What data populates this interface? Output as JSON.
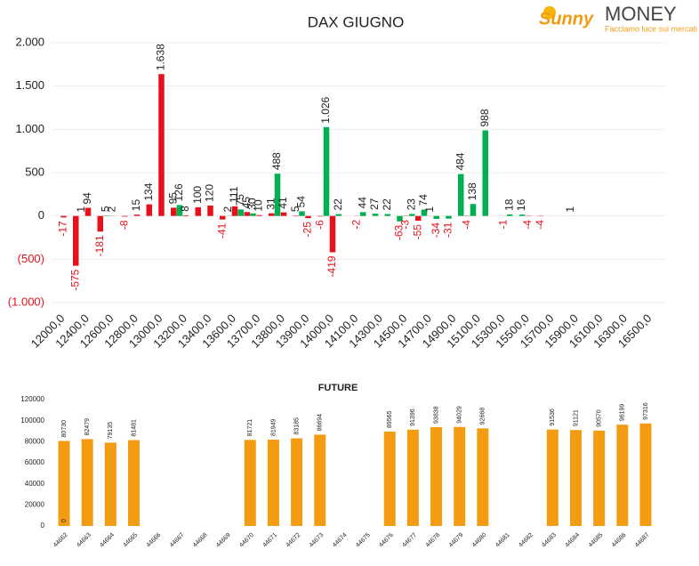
{
  "logo": {
    "brand": "Sunny",
    "name": "MONEY",
    "tagline": "Facciamo luce sui mercati"
  },
  "chart_data": [
    {
      "type": "bar",
      "title": "DAX GIUGNO",
      "categories": [
        "12000,0",
        null,
        "12400,0",
        null,
        "12600,0",
        null,
        "12800,0",
        null,
        "13000,0",
        null,
        "13200,0",
        null,
        "13400,0",
        null,
        "13600,0",
        null,
        "13700,0",
        null,
        "13800,0",
        null,
        "13900,0",
        null,
        "14000,0",
        null,
        "14100,0",
        null,
        "14300,0",
        null,
        "14500,0",
        null,
        "14700,0",
        null,
        "14900,0",
        null,
        "15100,0",
        null,
        "15300,0",
        null,
        "15500,0",
        null,
        "15700,0",
        null,
        "15900,0",
        null,
        "16100,0",
        null,
        "16300,0",
        null,
        "16500,0",
        null
      ],
      "series": [
        {
          "color": "#00b050",
          "values": [
            null,
            null,
            1,
            null,
            5,
            null,
            null,
            null,
            null,
            null,
            126,
            null,
            null,
            null,
            2,
            75,
            30,
            null,
            488,
            null,
            54,
            null,
            1026,
            22,
            null,
            44,
            27,
            22,
            -63,
            23,
            74,
            -34,
            -31,
            484,
            138,
            988,
            null,
            18,
            16,
            null,
            null,
            null,
            1,
            null,
            null,
            null,
            null,
            null,
            null,
            null
          ],
          "value_labels": [
            null,
            null,
            "1",
            null,
            "5",
            null,
            null,
            null,
            null,
            null,
            "126",
            null,
            null,
            null,
            "2",
            "75",
            "30",
            null,
            "488",
            null,
            "54",
            null,
            "1.026",
            "22",
            null,
            "44",
            "27",
            "22",
            "-63",
            "23",
            "74",
            "-34",
            "-31",
            "484",
            "138",
            "988",
            null,
            "18",
            "16",
            null,
            null,
            null,
            "1",
            null,
            null,
            null,
            null,
            null,
            null,
            null
          ]
        },
        {
          "color": "#e8101b",
          "values": [
            -17,
            -575,
            94,
            -181,
            2,
            -8,
            15,
            134,
            1638,
            95,
            8,
            100,
            120,
            -41,
            111,
            45,
            10,
            31,
            41,
            5,
            -25,
            -6,
            -419,
            null,
            -2,
            null,
            null,
            null,
            -3,
            -55,
            1,
            null,
            null,
            -4,
            null,
            null,
            -1,
            null,
            -4,
            -4,
            null,
            null,
            null,
            null,
            null,
            null,
            null,
            null,
            null,
            null
          ],
          "value_labels": [
            "-17",
            "-575",
            "94",
            "-181",
            "2",
            "-8",
            "15",
            "134",
            "1.638",
            "95",
            "8",
            "100",
            "120",
            "-41",
            "111",
            "45",
            "10",
            "31",
            "41",
            "5",
            "-25",
            "-6",
            "-419",
            null,
            "-2",
            null,
            null,
            null,
            "-3",
            "-55",
            "1",
            null,
            null,
            "-4",
            null,
            null,
            "-1",
            null,
            "-4",
            "-4",
            null,
            null,
            null,
            null,
            null,
            null,
            null,
            null,
            null,
            null
          ]
        }
      ],
      "ylim": [
        -1000,
        2000
      ],
      "yticks": [
        {
          "value": -1000,
          "label": "(1.000)"
        },
        {
          "value": -500,
          "label": "(500)"
        },
        0,
        500,
        {
          "value": 1000,
          "label": "1.000"
        },
        {
          "value": 1500,
          "label": "1.500"
        },
        {
          "value": 2000,
          "label": "2.000"
        }
      ],
      "grid": true
    },
    {
      "type": "bar",
      "title": "FUTURE",
      "categories": [
        "44662",
        "44663",
        "44664",
        "44665",
        "44666",
        "44667",
        "44668",
        "44669",
        "44670",
        "44671",
        "44672",
        "44673",
        "44674",
        "44675",
        "44676",
        "44677",
        "44678",
        "44679",
        "44680",
        "44681",
        "44682",
        "44683",
        "44684",
        "44685",
        "44686",
        "44687"
      ],
      "series": [
        {
          "color": "#f39c12",
          "values": [
            80730,
            82479,
            79135,
            81481,
            null,
            null,
            null,
            null,
            81721,
            81949,
            83185,
            86694,
            null,
            null,
            89565,
            91396,
            93838,
            94029,
            92668,
            null,
            null,
            91536,
            91121,
            90570,
            96199,
            97316
          ]
        },
        {
          "color": "#f39c12",
          "values": [
            0,
            null,
            null,
            null,
            null,
            null,
            null,
            null,
            null,
            null,
            null,
            null,
            null,
            null,
            null,
            null,
            null,
            null,
            null,
            null,
            null,
            null,
            null,
            null,
            null,
            null
          ]
        }
      ],
      "ylim": [
        0,
        120000
      ],
      "yticks": [
        0,
        20000,
        40000,
        60000,
        80000,
        100000,
        120000
      ],
      "grid": false
    }
  ]
}
